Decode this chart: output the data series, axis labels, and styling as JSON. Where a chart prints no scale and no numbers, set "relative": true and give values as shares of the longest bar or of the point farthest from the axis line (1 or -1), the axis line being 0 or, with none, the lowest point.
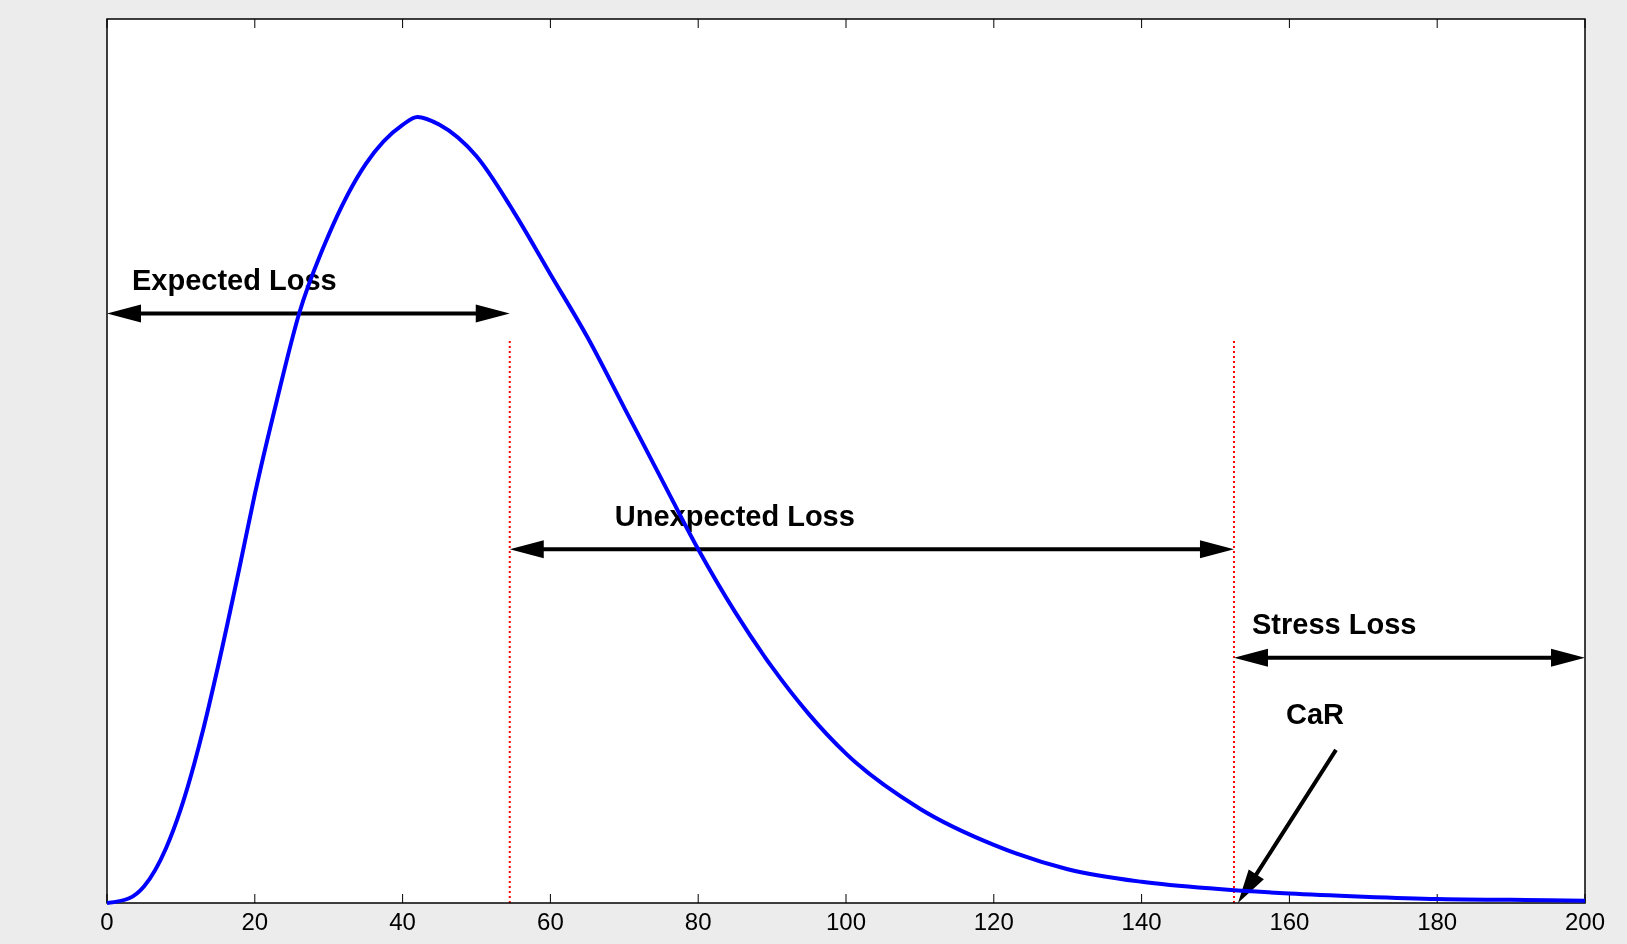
{
  "chart_data": {
    "type": "line",
    "relative": true,
    "x": [
      0,
      3,
      5,
      8,
      10,
      13,
      15,
      18,
      20,
      23,
      26,
      30,
      35,
      40,
      42,
      45,
      50,
      55,
      60,
      65,
      70,
      75,
      80,
      85,
      90,
      95,
      100,
      110,
      120,
      130,
      140,
      150,
      160,
      170,
      180,
      190,
      200
    ],
    "series": [
      {
        "color": "#0000ff",
        "values": [
          0,
          0.006,
          0.021,
          0.07,
          0.12,
          0.22,
          0.3,
          0.43,
          0.52,
          0.64,
          0.75,
          0.85,
          0.94,
          0.99,
          1,
          0.99,
          0.95,
          0.88,
          0.8,
          0.72,
          0.63,
          0.54,
          0.45,
          0.37,
          0.3,
          0.24,
          0.19,
          0.12,
          0.074,
          0.043,
          0.027,
          0.018,
          0.012,
          0.008,
          0.005,
          0.004,
          0.003
        ]
      }
    ],
    "xlim": [
      0,
      200
    ],
    "xticks": [
      0,
      20,
      40,
      60,
      80,
      100,
      120,
      140,
      160,
      180,
      200
    ],
    "marker": "none",
    "line_style": "solid",
    "grid": false,
    "ref_lines": [
      {
        "axis": "x",
        "value": 54.5,
        "color": "#ff0000",
        "line_style": "dotted"
      },
      {
        "axis": "x",
        "value": 152.5,
        "color": "#ff0000",
        "line_style": "dotted"
      }
    ],
    "annotations": [
      "Expected Loss",
      "Unexpected Loss",
      "Stress Loss",
      "CaR"
    ]
  }
}
